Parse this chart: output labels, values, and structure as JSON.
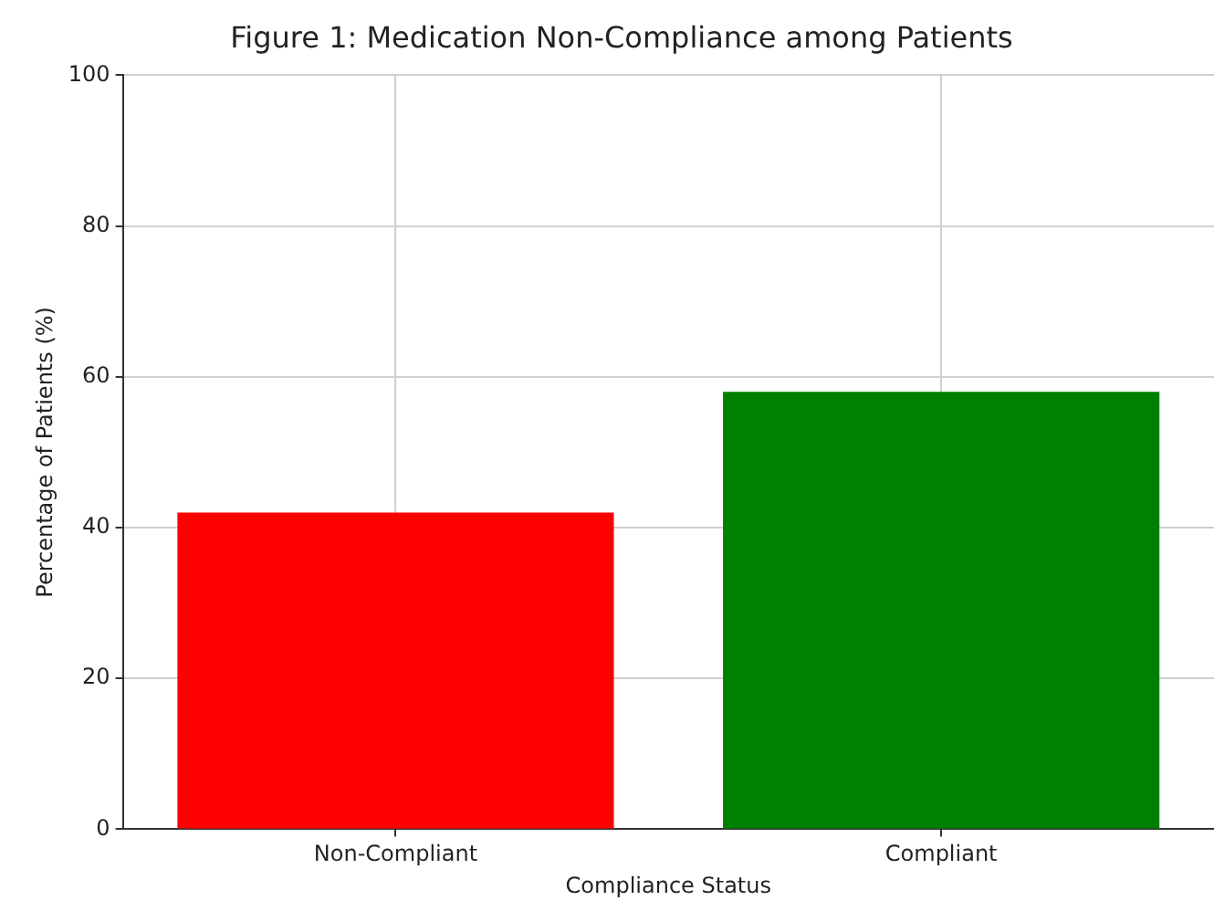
{
  "chart_data": {
    "type": "bar",
    "title": "Figure 1: Medication Non-Compliance among Patients",
    "xlabel": "Compliance Status",
    "ylabel": "Percentage of Patients (%)",
    "categories": [
      "Non-Compliant",
      "Compliant"
    ],
    "values": [
      42,
      58
    ],
    "colors": [
      "#ff0000",
      "#008000"
    ],
    "ylim": [
      0,
      100
    ],
    "yticks": [
      0,
      20,
      40,
      60,
      80,
      100
    ],
    "grid": true
  }
}
